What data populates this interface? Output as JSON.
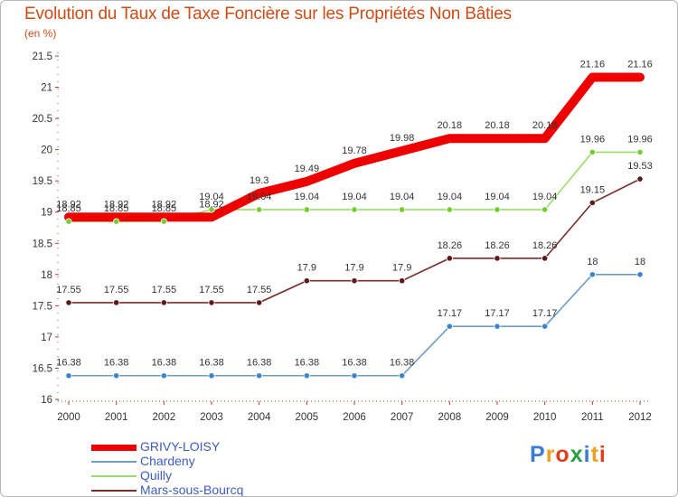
{
  "title": "Evolution du Taux de Taxe Foncière sur les Propriétés Non Bâties",
  "unit_label": "(en %)",
  "logo": {
    "text": "Proxiti",
    "colors": [
      "#3a7bd5",
      "#f0a020",
      "#e04020",
      "#2aa040",
      "#3a7bd5",
      "#f0a020",
      "#e04020"
    ]
  },
  "chart_data": {
    "type": "line",
    "title": "Evolution du Taux de Taxe Foncière sur les Propriétés Non Bâties",
    "ylabel": "(en %)",
    "xlabel": "",
    "x": [
      "2000",
      "2001",
      "2002",
      "2003",
      "2004",
      "2005",
      "2006",
      "2007",
      "2008",
      "2009",
      "2010",
      "2011",
      "2012"
    ],
    "ylim": [
      16,
      21.5
    ],
    "yticks": [
      "16",
      "16.5",
      "17",
      "17.5",
      "18",
      "18.5",
      "19",
      "19.5",
      "20",
      "20.5",
      "21",
      "21.5"
    ],
    "grid": false,
    "legend_position": "bottom-left",
    "series": [
      {
        "name": "GRIVY-LOISY",
        "color": "#ee0000",
        "emphasis": true,
        "values": [
          18.92,
          18.92,
          18.92,
          18.92,
          19.3,
          19.49,
          19.78,
          19.98,
          20.18,
          20.18,
          20.18,
          21.16,
          21.16
        ],
        "labels": [
          "18.92",
          "18.92",
          "18.92",
          "18.92",
          "19.3",
          "19.49",
          "19.78",
          "19.98",
          "20.18",
          "20.18",
          "20.18",
          "21.16",
          "21.16"
        ]
      },
      {
        "name": "Chardeny",
        "color": "#6c9cc8",
        "marker": "#3a86cc",
        "values": [
          16.38,
          16.38,
          16.38,
          16.38,
          16.38,
          16.38,
          16.38,
          16.38,
          17.17,
          17.17,
          17.17,
          18,
          18
        ],
        "labels": [
          "16.38",
          "16.38",
          "16.38",
          "16.38",
          "16.38",
          "16.38",
          "16.38",
          "16.38",
          "17.17",
          "17.17",
          "17.17",
          "18",
          "18"
        ]
      },
      {
        "name": "Quilly",
        "color": "#99dd66",
        "marker": "#77cc33",
        "values": [
          18.85,
          18.85,
          18.85,
          19.04,
          19.04,
          19.04,
          19.04,
          19.04,
          19.04,
          19.04,
          19.04,
          19.96,
          19.96
        ],
        "labels": [
          "18.85",
          "18.85",
          "18.85",
          "19.04",
          "19.04",
          "19.04",
          "19.04",
          "19.04",
          "19.04",
          "19.04",
          "19.04",
          "19.96",
          "19.96"
        ]
      },
      {
        "name": "Mars-sous-Bourcq",
        "color": "#7a2d2d",
        "marker": "#5e1a1a",
        "values": [
          17.55,
          17.55,
          17.55,
          17.55,
          17.55,
          17.9,
          17.9,
          17.9,
          18.26,
          18.26,
          18.26,
          19.15,
          19.53
        ],
        "labels": [
          "17.55",
          "17.55",
          "17.55",
          "17.55",
          "17.55",
          "17.9",
          "17.9",
          "17.9",
          "18.26",
          "18.26",
          "18.26",
          "19.15",
          "19.53"
        ]
      }
    ]
  }
}
